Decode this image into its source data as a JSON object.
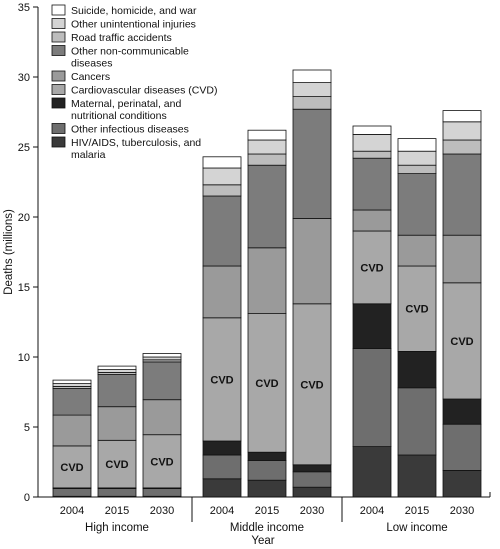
{
  "chart_data": {
    "type": "bar",
    "stacked": true,
    "xlabel": "Year",
    "ylabel": "Deaths (millions)",
    "ylim": [
      0,
      35
    ],
    "yticks": [
      0,
      5,
      10,
      15,
      20,
      25,
      30,
      35
    ],
    "groups": [
      {
        "name": "High income",
        "years": [
          "2004",
          "2015",
          "2030"
        ]
      },
      {
        "name": "Middle income",
        "years": [
          "2004",
          "2015",
          "2030"
        ]
      },
      {
        "name": "Low income",
        "years": [
          "2004",
          "2015",
          "2030"
        ]
      }
    ],
    "categories": [
      "High income 2004",
      "High income 2015",
      "High income 2030",
      "Middle income 2004",
      "Middle income 2015",
      "Middle income 2030",
      "Low income 2004",
      "Low income 2015",
      "Low income 2030"
    ],
    "series": [
      {
        "name": "HIV/AIDS, tuberculosis, and malaria",
        "color": "#3a3a3a",
        "values": [
          0.05,
          0.05,
          0.05,
          1.3,
          1.2,
          0.7,
          3.6,
          3.0,
          1.9
        ]
      },
      {
        "name": "Other infectious diseases",
        "color": "#6e6e6e",
        "values": [
          0.55,
          0.55,
          0.55,
          1.7,
          1.4,
          1.1,
          7.0,
          4.8,
          3.3
        ]
      },
      {
        "name": "Maternal, perinatal, and nutritional conditions",
        "color": "#222222",
        "values": [
          0.05,
          0.05,
          0.05,
          1.0,
          0.6,
          0.5,
          3.2,
          2.6,
          1.8
        ]
      },
      {
        "name": "Cardiovascular diseases (CVD)",
        "color": "#a8a8a8",
        "values": [
          3.0,
          3.4,
          3.8,
          8.8,
          9.9,
          11.5,
          5.2,
          6.1,
          8.3
        ]
      },
      {
        "name": "Cancers",
        "color": "#9a9a9a",
        "values": [
          2.2,
          2.4,
          2.5,
          3.7,
          4.7,
          6.1,
          1.5,
          2.2,
          3.4
        ]
      },
      {
        "name": "Other non-communicable diseases",
        "color": "#7c7c7c",
        "values": [
          1.9,
          2.3,
          2.7,
          5.0,
          5.9,
          7.8,
          3.7,
          4.4,
          5.8
        ]
      },
      {
        "name": "Road traffic accidents",
        "color": "#bdbdbd",
        "values": [
          0.15,
          0.15,
          0.15,
          0.8,
          0.8,
          0.9,
          0.5,
          0.6,
          1.0
        ]
      },
      {
        "name": "Other unintentional injuries",
        "color": "#d4d4d4",
        "values": [
          0.2,
          0.2,
          0.2,
          1.2,
          1.0,
          1.0,
          1.2,
          1.0,
          1.3
        ]
      },
      {
        "name": "Suicide, homicide, and war",
        "color": "#ffffff",
        "values": [
          0.25,
          0.25,
          0.25,
          0.8,
          0.7,
          0.9,
          0.6,
          0.9,
          0.8
        ]
      }
    ],
    "annotations": [
      "CVD",
      "CVD",
      "CVD",
      "CVD",
      "CVD",
      "CVD",
      "CVD",
      "CVD",
      "CVD"
    ],
    "legend_placement": "top-left",
    "grid": false
  }
}
